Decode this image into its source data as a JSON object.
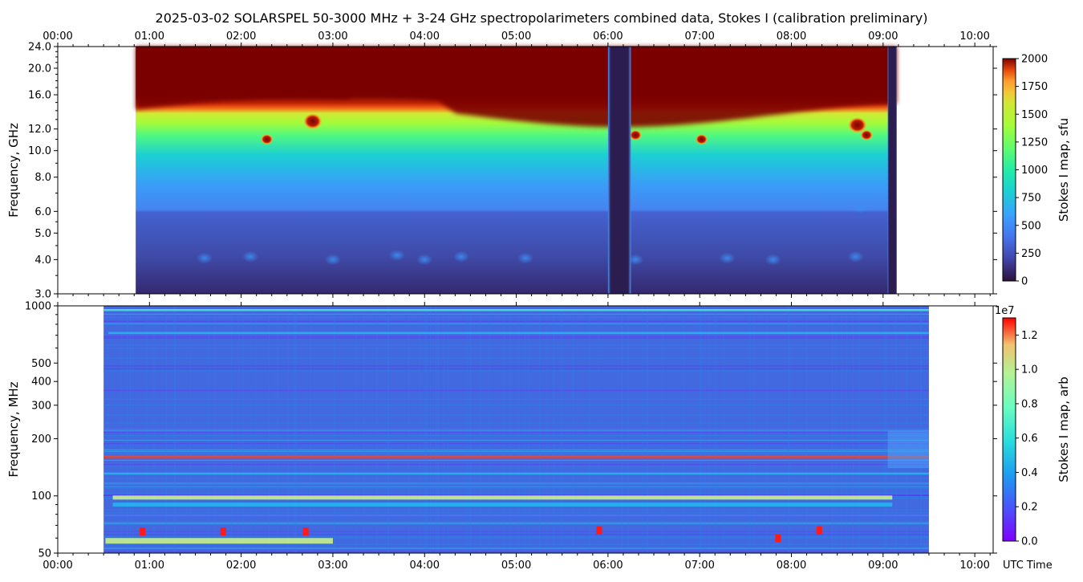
{
  "title": "2025-03-02  SOLARSPEL  50-3000 MHz  +  3-24 GHz  spectropolarimeters combined data,  Stokes I  (calibration preliminary)",
  "time_axis": {
    "ticks": [
      "00:00",
      "01:00",
      "02:00",
      "03:00",
      "04:00",
      "05:00",
      "06:00",
      "07:00",
      "08:00",
      "09:00",
      "10:00"
    ],
    "bottom_label": "UTC Time"
  },
  "colors": {
    "spectrum_top_saturated": "#7a0403",
    "spectrum_bottom_background": "#4269df",
    "data_gap": "#2b1d4f"
  },
  "chart_data": [
    {
      "type": "heatmap",
      "panel": "top",
      "x_range_hours": [
        0.0,
        10.2
      ],
      "data_extent_hours": [
        0.85,
        9.15
      ],
      "gaps_hours": [
        [
          6.0,
          6.25
        ],
        [
          9.05,
          9.15
        ]
      ],
      "ylabel": "Frequency, GHz",
      "yscale": "log",
      "ylim": [
        3.0,
        24.0
      ],
      "yticks": [
        {
          "v": 3.0,
          "label": "3.0"
        },
        {
          "v": 4.0,
          "label": "4.0"
        },
        {
          "v": 5.0,
          "label": "5.0"
        },
        {
          "v": 6.0,
          "label": "6.0"
        },
        {
          "v": 8.0,
          "label": "8.0"
        },
        {
          "v": 10.0,
          "label": "10.0"
        },
        {
          "v": 12.0,
          "label": "12.0"
        },
        {
          "v": 16.0,
          "label": "16.0"
        },
        {
          "v": 20.0,
          "label": "20.0"
        },
        {
          "v": 24.0,
          "label": "24.0"
        }
      ],
      "colorbar": {
        "label": "Stokes I map, sfu",
        "range": [
          0,
          2000
        ],
        "ticks": [
          "0",
          "250",
          "500",
          "750",
          "1000",
          "1250",
          "1500",
          "1750",
          "2000"
        ],
        "offset_label": ""
      },
      "bursts": [
        {
          "t": 2.28,
          "f": 11.0
        },
        {
          "t": 2.78,
          "f": 12.8
        },
        {
          "t": 6.3,
          "f": 11.4
        },
        {
          "t": 7.02,
          "f": 11.0
        },
        {
          "t": 8.72,
          "f": 12.4
        },
        {
          "t": 8.82,
          "f": 11.4
        }
      ]
    },
    {
      "type": "heatmap",
      "panel": "bottom",
      "x_range_hours": [
        0.0,
        10.2
      ],
      "data_extent_hours": [
        0.5,
        9.5
      ],
      "ylabel": "Frequency, MHz",
      "yscale": "log",
      "ylim": [
        50,
        1000
      ],
      "yticks": [
        {
          "v": 50,
          "label": "50"
        },
        {
          "v": 100,
          "label": "100"
        },
        {
          "v": 200,
          "label": "200"
        },
        {
          "v": 300,
          "label": "300"
        },
        {
          "v": 400,
          "label": "400"
        },
        {
          "v": 500,
          "label": "500"
        },
        {
          "v": 1000,
          "label": "1000"
        }
      ],
      "colorbar": {
        "label": "Stokes I map, arb",
        "range": [
          0.0,
          1.3
        ],
        "ticks": [
          "0.0",
          "0.2",
          "0.4",
          "0.6",
          "0.8",
          "1.0",
          "1.2"
        ],
        "offset_label": "1e7"
      },
      "bands_mhz": [
        {
          "f": 58,
          "t0": 0.52,
          "t1": 3.0,
          "level": 0.7
        },
        {
          "f": 98,
          "t0": 0.6,
          "t1": 9.1,
          "level": 0.6
        },
        {
          "f": 90,
          "t0": 0.6,
          "t1": 9.1,
          "level": 0.35
        },
        {
          "f": 160,
          "t0": 0.5,
          "t1": 9.5,
          "level": 0.9
        },
        {
          "f": 131,
          "t0": 0.5,
          "t1": 9.5,
          "level": 0.4
        },
        {
          "f": 720,
          "t0": 0.55,
          "t1": 9.5,
          "level": 0.35
        },
        {
          "f": 950,
          "t0": 0.5,
          "t1": 9.5,
          "level": 0.45
        }
      ]
    }
  ]
}
